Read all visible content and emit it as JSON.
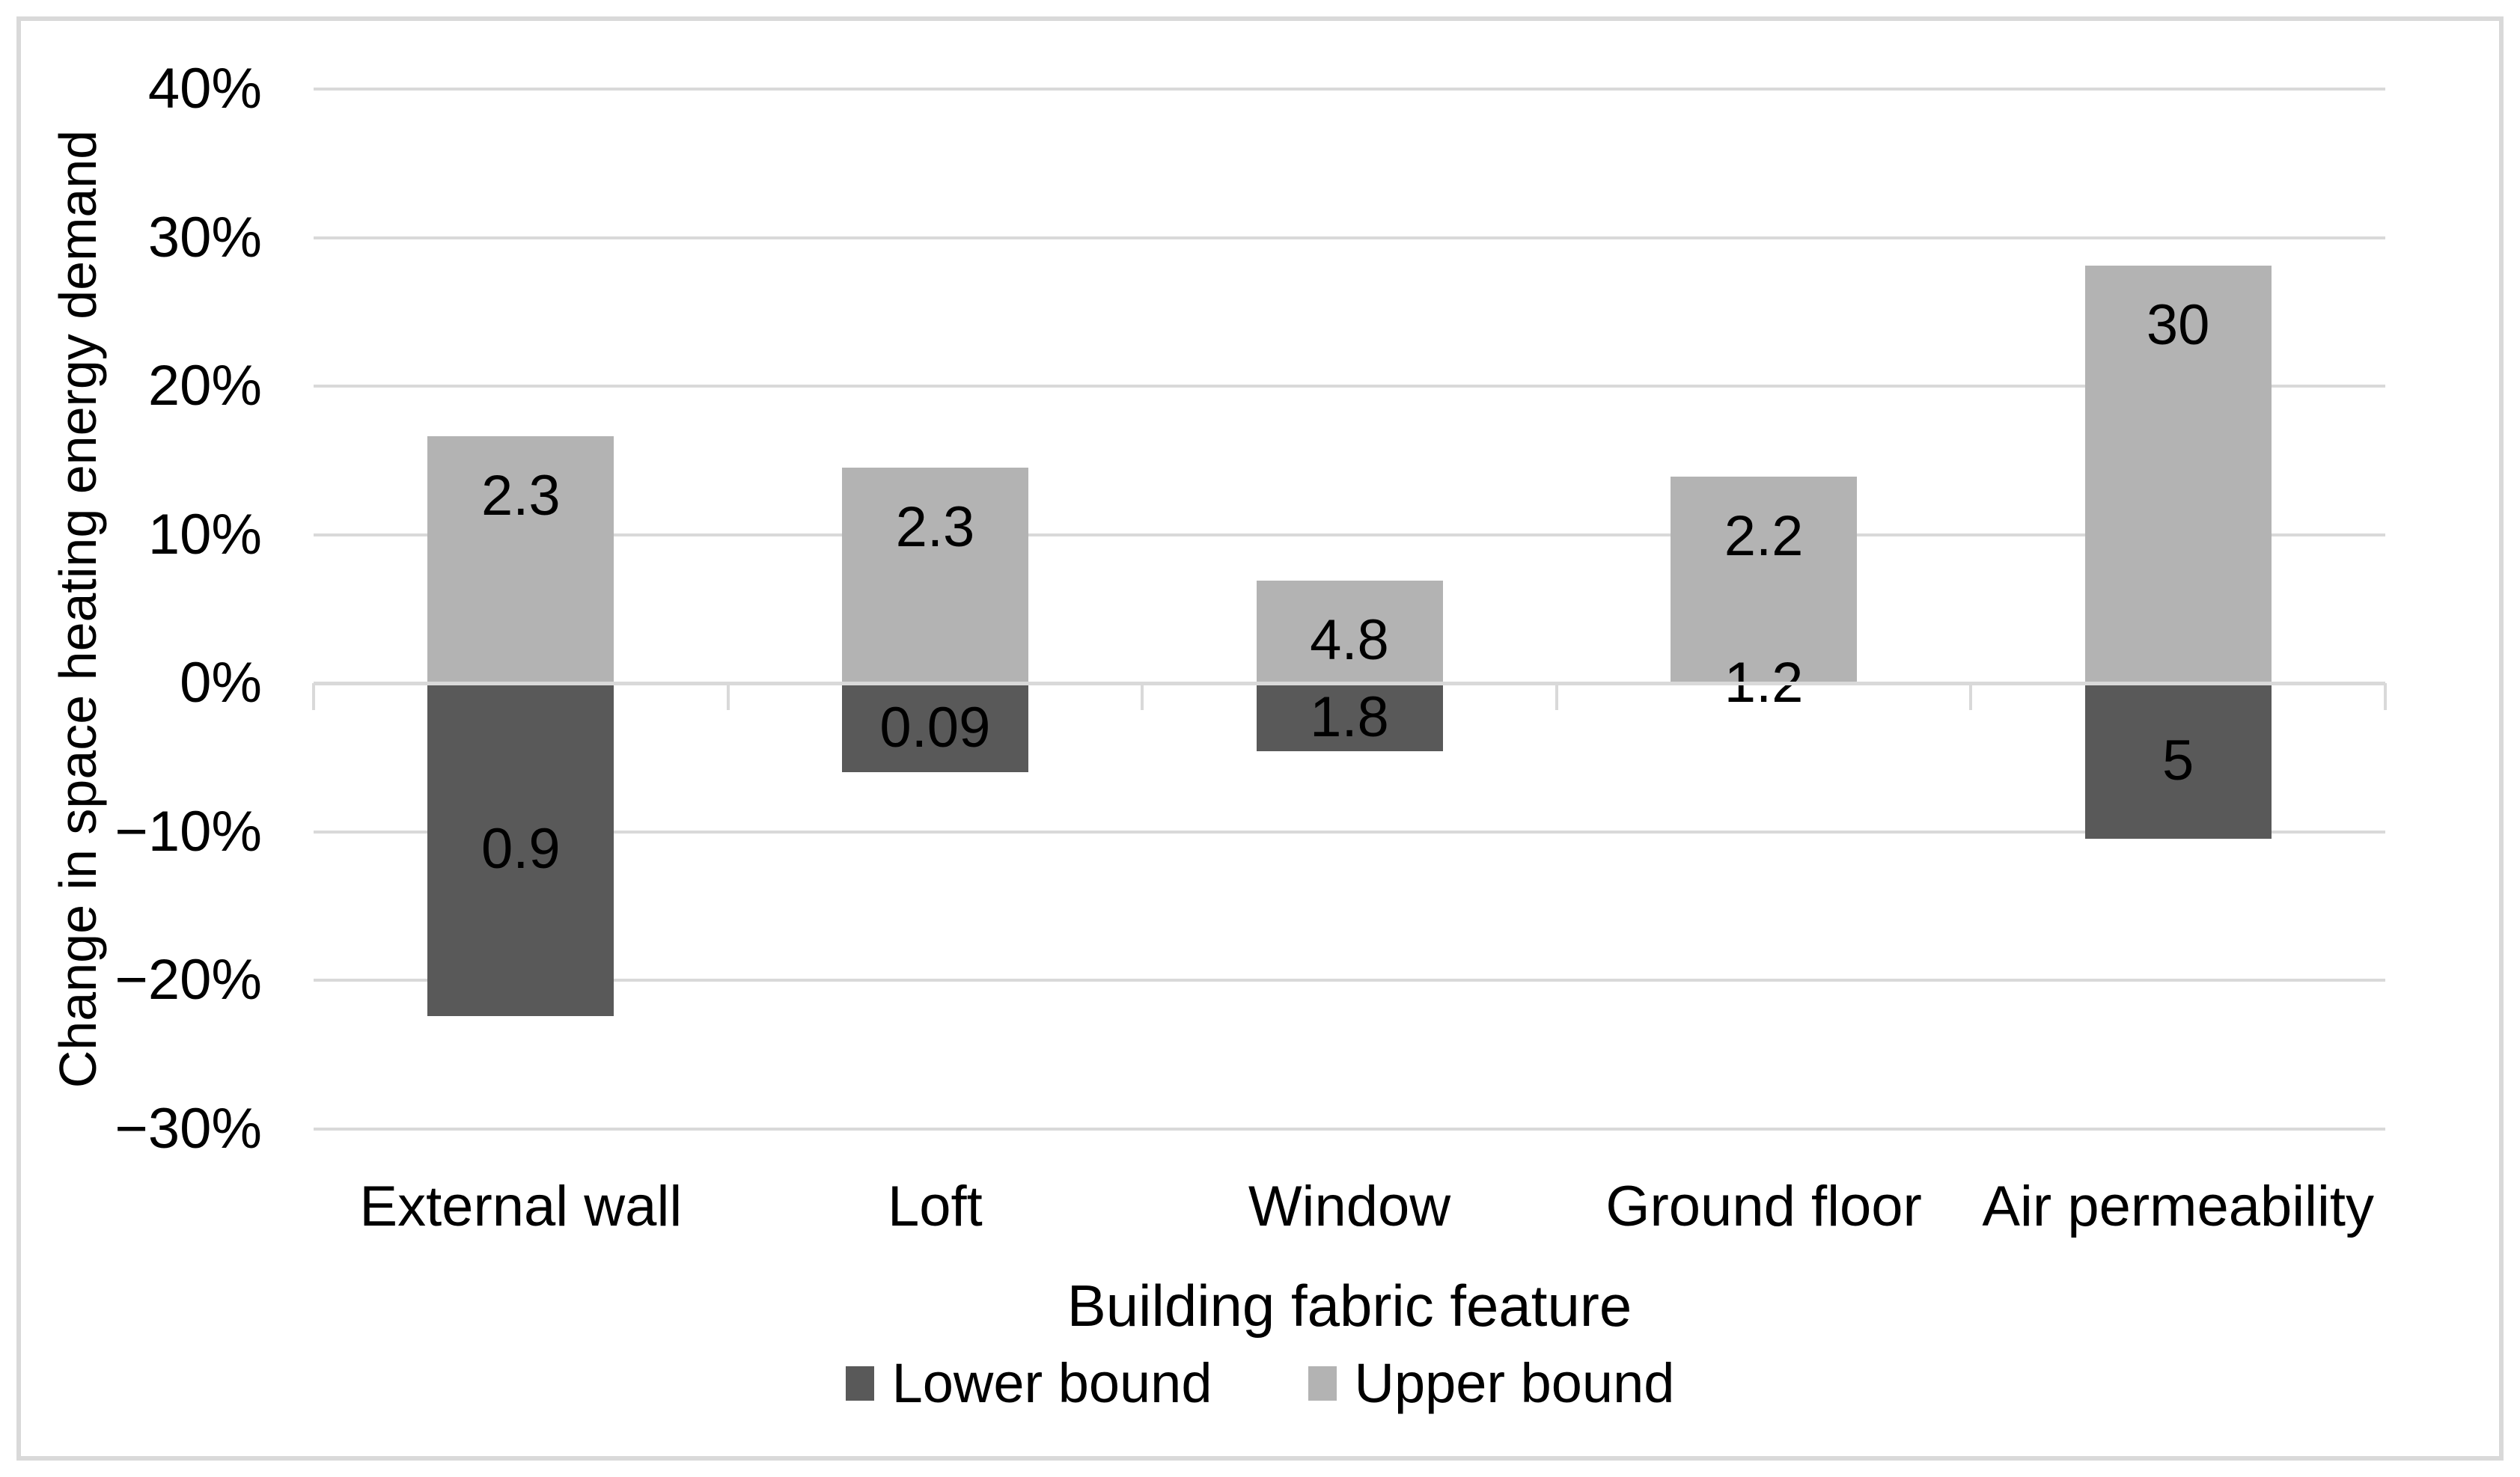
{
  "chart": {
    "background": "#ffffff",
    "border_color": "#d9d9d9",
    "text_color": "#000000"
  },
  "chart_data": {
    "type": "bar",
    "subtype": "diverging-stacked-column",
    "title": "",
    "categories": [
      "External wall",
      "Loft",
      "Window",
      "Ground floor",
      "Air permeability"
    ],
    "series": [
      {
        "name": "Lower bound",
        "color": "#595959",
        "extent_pct": [
          -22.4,
          -6,
          -4.6,
          0,
          -10.5
        ],
        "data_labels": [
          "0.9",
          "0.09",
          "1.8",
          "1.2",
          "5"
        ]
      },
      {
        "name": "Upper bound",
        "color": "#b3b3b3",
        "extent_pct": [
          16.6,
          14.5,
          6.9,
          13.9,
          28.1
        ],
        "data_labels": [
          "2.3",
          "2.3",
          "4.8",
          "2.2",
          "30"
        ]
      }
    ],
    "xlabel": "Building fabric feature",
    "ylabel": "Change in space heating energy demand",
    "ylim": [
      -30,
      40
    ],
    "ytick_step": 10,
    "ytick_labels": [
      "40%",
      "30%",
      "20%",
      "10%",
      "0%",
      "−10%",
      "−20%",
      "−30%"
    ],
    "zero_tick_label": "0%",
    "grid": "horizontal",
    "gridline_color": "#d9d9d9",
    "legend_position": "bottom"
  }
}
